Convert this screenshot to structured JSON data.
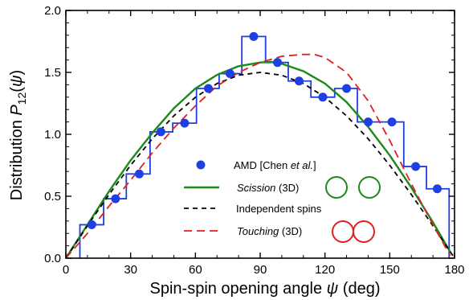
{
  "chart_data": {
    "type": "line",
    "xlabel": {
      "text": "Spin-spin opening angle ",
      "symbol": "ψ",
      "unit": " (deg)"
    },
    "ylabel": {
      "text": "Distribution ",
      "symbol": "P",
      "subscript": "12",
      "arg_open": "(",
      "arg": "ψ",
      "arg_close": ")"
    },
    "xlim": [
      0,
      180
    ],
    "ylim": [
      0,
      2.0
    ],
    "xticks": [
      0,
      30,
      60,
      90,
      120,
      150,
      180
    ],
    "yticks": [
      0.0,
      0.5,
      1.0,
      1.5,
      2.0
    ],
    "ytick_labels": [
      "0.0",
      "0.5",
      "1.0",
      "1.5",
      "2.0"
    ],
    "grid": false,
    "legend_position": "lower-right",
    "series": [
      {
        "name": "AMD [Chen et al.]",
        "name_parts": {
          "pre": "AMD [Chen ",
          "italic": "et al.",
          "post": "]"
        },
        "kind": "points",
        "color": "#1f3fe0",
        "x": [
          12,
          23,
          34,
          44,
          55,
          66,
          76,
          87,
          98,
          108,
          119,
          130,
          140,
          151,
          162,
          172
        ],
        "y": [
          0.27,
          0.48,
          0.68,
          1.02,
          1.09,
          1.37,
          1.49,
          1.79,
          1.58,
          1.43,
          1.3,
          1.37,
          1.1,
          1.1,
          0.74,
          0.56
        ]
      },
      {
        "name": "AMD histogram",
        "kind": "step",
        "color": "#1f3fe0",
        "edges": [
          6.5,
          17.5,
          28,
          39,
          49.5,
          60.5,
          71,
          81.5,
          92.5,
          103,
          113.5,
          124.5,
          135,
          145.5,
          156.5,
          167,
          177.5
        ],
        "y": [
          0.27,
          0.48,
          0.68,
          1.02,
          1.09,
          1.37,
          1.49,
          1.79,
          1.58,
          1.43,
          1.3,
          1.37,
          1.1,
          1.1,
          0.74,
          0.56
        ]
      },
      {
        "name": "Scission (3D)",
        "name_parts": {
          "italic": "Scission",
          "post": " (3D)"
        },
        "kind": "line",
        "color": "#1a8a1a",
        "dash": "solid",
        "x": [
          0,
          10,
          20,
          30,
          40,
          50,
          60,
          70,
          80,
          90,
          95,
          100,
          110,
          120,
          130,
          140,
          150,
          160,
          170,
          178
        ],
        "y": [
          0.0,
          0.27,
          0.54,
          0.79,
          1.01,
          1.21,
          1.37,
          1.48,
          1.55,
          1.58,
          1.585,
          1.57,
          1.51,
          1.41,
          1.26,
          1.06,
          0.83,
          0.57,
          0.29,
          0.05
        ]
      },
      {
        "name": "Independent spins",
        "kind": "line",
        "color": "#000000",
        "dash": "dashed",
        "x": [
          0,
          10,
          20,
          30,
          40,
          50,
          60,
          70,
          80,
          90,
          100,
          110,
          120,
          130,
          140,
          150,
          160,
          170,
          180
        ],
        "y": [
          0.0,
          0.261,
          0.514,
          0.75,
          0.964,
          1.149,
          1.299,
          1.41,
          1.477,
          1.5,
          1.477,
          1.41,
          1.299,
          1.149,
          0.964,
          0.75,
          0.514,
          0.261,
          0.0
        ]
      },
      {
        "name": "Touching (3D)",
        "name_parts": {
          "italic": "Touching",
          "post": " (3D)"
        },
        "kind": "line",
        "color": "#e02020",
        "dash": "long-dashed",
        "x": [
          0,
          10,
          20,
          30,
          40,
          50,
          60,
          70,
          80,
          90,
          100,
          110,
          115,
          120,
          130,
          140,
          150,
          160,
          170,
          178
        ],
        "y": [
          0.0,
          0.2,
          0.42,
          0.63,
          0.85,
          1.05,
          1.23,
          1.39,
          1.5,
          1.58,
          1.63,
          1.645,
          1.645,
          1.62,
          1.5,
          1.27,
          0.95,
          0.6,
          0.27,
          0.02
        ]
      }
    ]
  },
  "legend_icons": {
    "scission": "two-separated-circles-icon",
    "touching": "two-touching-circles-icon"
  }
}
